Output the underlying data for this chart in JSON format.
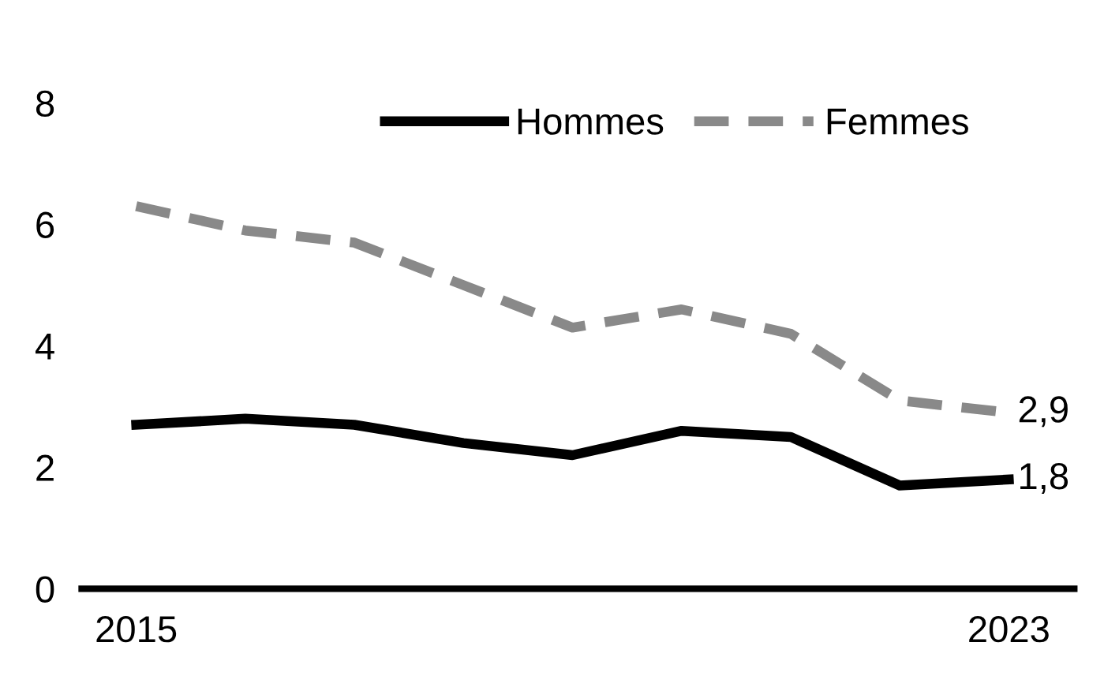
{
  "chart_data": {
    "type": "line",
    "x": [
      2015,
      2016,
      2017,
      2018,
      2019,
      2020,
      2021,
      2022,
      2023
    ],
    "series": [
      {
        "name": "Hommes",
        "color": "#000000",
        "line_style": "solid",
        "values": [
          2.7,
          2.8,
          2.7,
          2.4,
          2.2,
          2.6,
          2.5,
          1.7,
          1.8
        ],
        "value_labels": [
          null,
          null,
          null,
          null,
          null,
          null,
          null,
          null,
          "1,8"
        ]
      },
      {
        "name": "Femmes",
        "color": "#898989",
        "line_style": "dashed",
        "values": [
          6.3,
          5.9,
          5.7,
          5.0,
          4.3,
          4.6,
          4.2,
          3.1,
          2.9
        ],
        "value_labels": [
          null,
          null,
          null,
          null,
          null,
          null,
          null,
          null,
          "2,9"
        ]
      }
    ],
    "xlim": [
      2014.5,
      2023.6
    ],
    "xticks": [
      2015,
      2023
    ],
    "ylim": [
      0,
      8
    ],
    "yticks": [
      0,
      2,
      4,
      6,
      8
    ],
    "grid": false,
    "legend": "top",
    "marker": "none"
  }
}
